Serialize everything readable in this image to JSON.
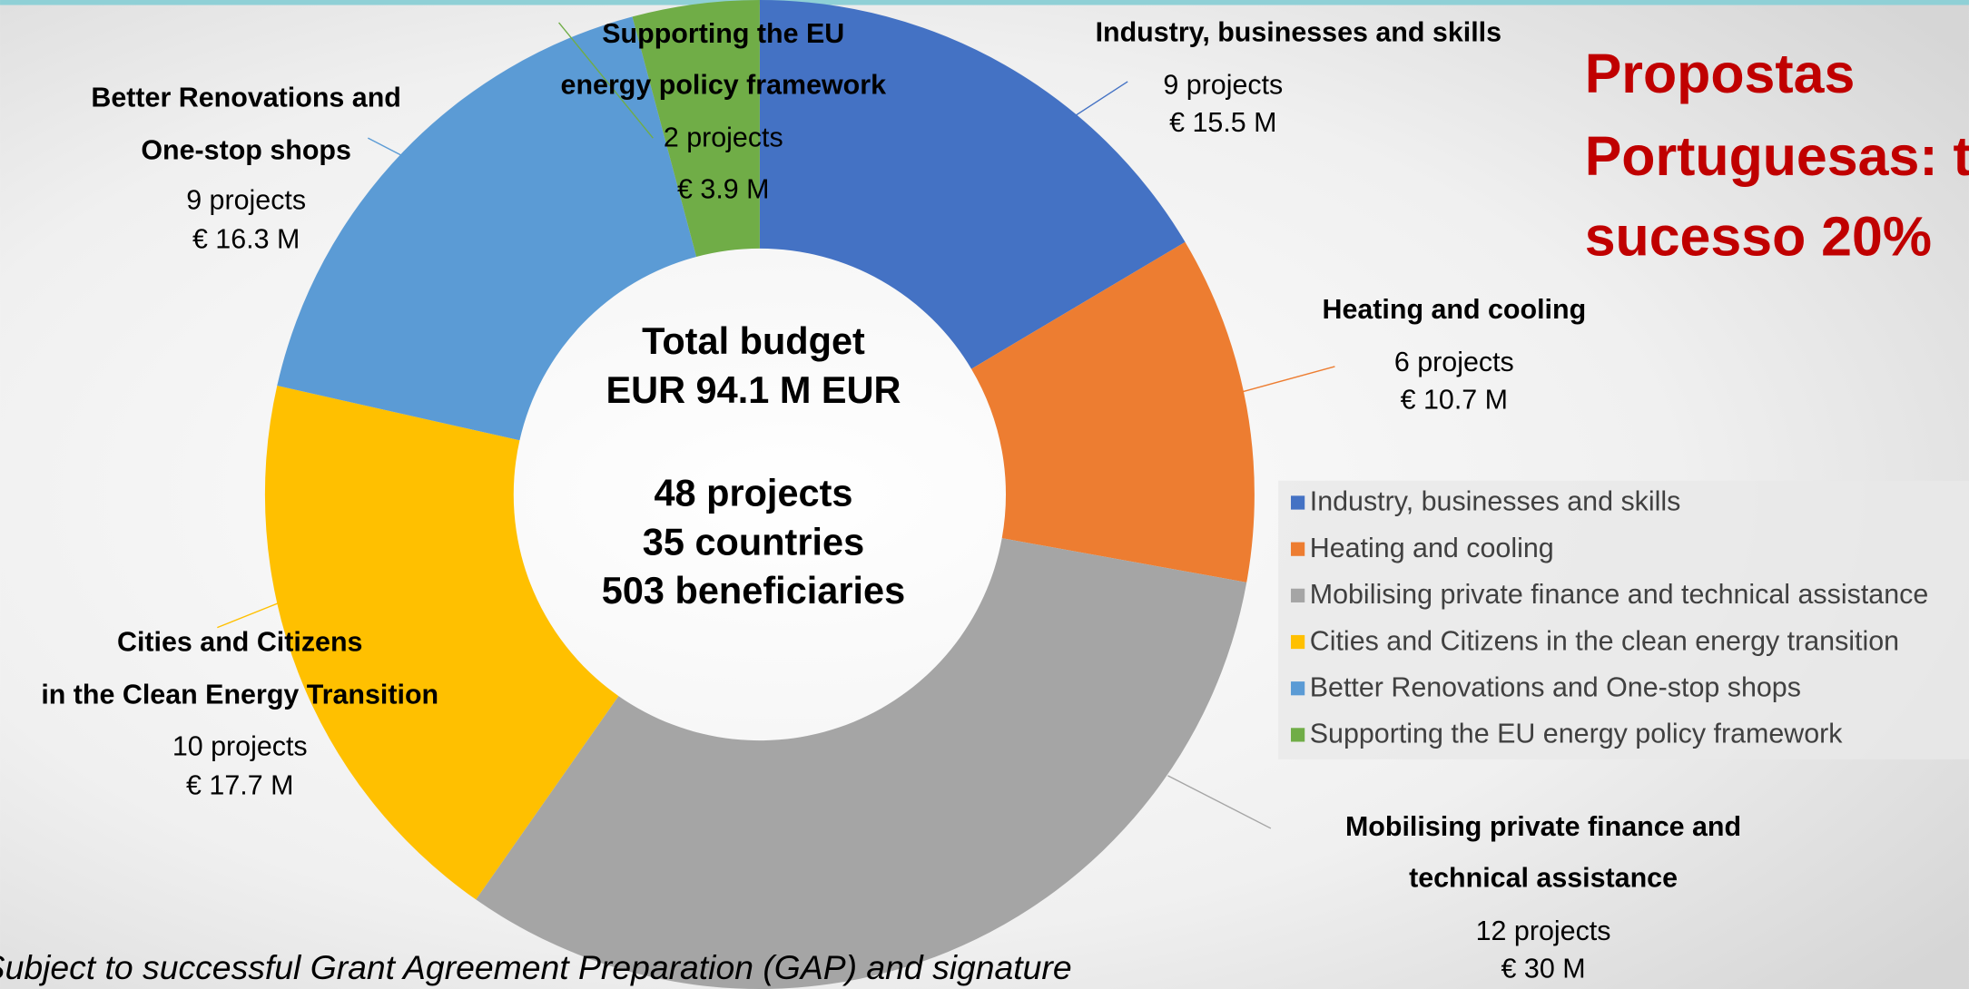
{
  "chart_data": {
    "type": "donut",
    "title_lines": [
      "Propostas",
      "Portuguesas: t",
      "sucesso 20%"
    ],
    "center_lines": [
      "Total budget",
      "EUR 94.1 M EUR",
      "48 projects",
      "35 countries",
      "503 beneficiaries"
    ],
    "footnote": "Subject to successful Grant Agreement Preparation (GAP) and signature",
    "categories": [
      "Industry, businesses and skills",
      "Heating and cooling",
      "Mobilising private finance and technical assistance",
      "Cities and Citizens in the clean energy transition",
      "Better Renovations and One-stop shops",
      "Supporting the EU energy policy framework"
    ],
    "label_lines": [
      [
        "Industry, businesses and skills"
      ],
      [
        "Heating and cooling"
      ],
      [
        "Mobilising private finance and",
        "technical assistance"
      ],
      [
        "Cities and Citizens",
        "in the Clean Energy Transition"
      ],
      [
        "Better Renovations and",
        "One-stop shops"
      ],
      [
        "Supporting the EU",
        "energy policy framework"
      ]
    ],
    "project_labels": [
      "9 projects",
      "6 projects",
      "12 projects",
      "10 projects",
      "9 projects",
      "2 projects"
    ],
    "values": [
      15.5,
      10.7,
      30,
      17.7,
      16.3,
      3.9
    ],
    "value_labels": [
      "€ 15.5 M",
      "€ 10.7 M",
      "€ 30 M",
      "€ 17.7 M",
      "€ 16.3 M",
      "€ 3.9 M"
    ],
    "colors": [
      "#4472c4",
      "#ed7d31",
      "#a5a5a5",
      "#ffc000",
      "#5b9bd5",
      "#70ad47"
    ],
    "legend": "right"
  }
}
